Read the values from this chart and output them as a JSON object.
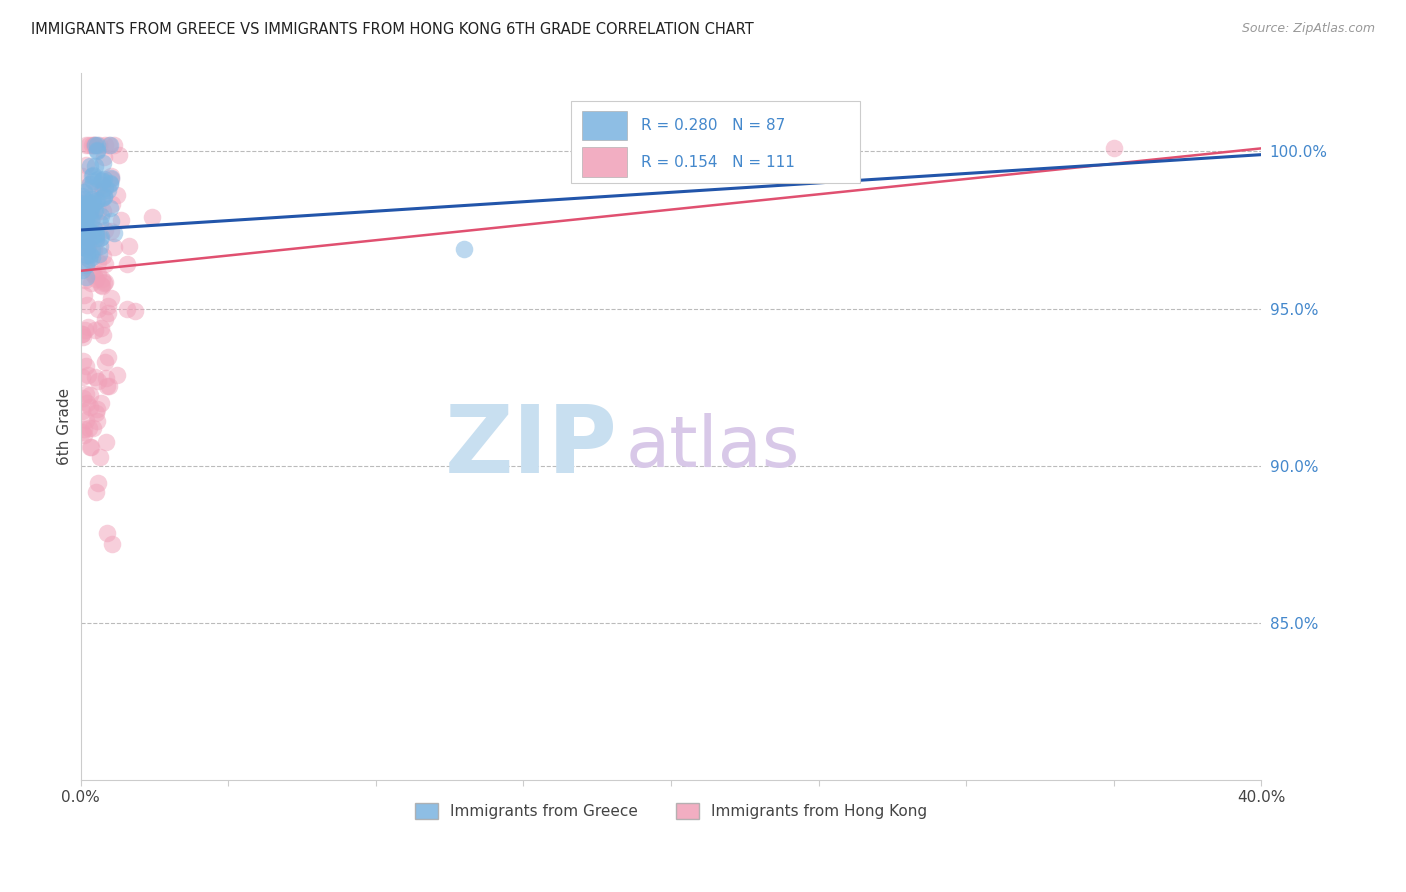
{
  "title": "IMMIGRANTS FROM GREECE VS IMMIGRANTS FROM HONG KONG 6TH GRADE CORRELATION CHART",
  "source": "Source: ZipAtlas.com",
  "ylabel": "6th Grade",
  "ytick_labels": [
    "100.0%",
    "95.0%",
    "90.0%",
    "85.0%"
  ],
  "ytick_positions": [
    1.0,
    0.95,
    0.9,
    0.85
  ],
  "xlim": [
    0.0,
    0.4
  ],
  "ylim": [
    0.8,
    1.025
  ],
  "legend1_label": "Immigrants from Greece",
  "legend2_label": "Immigrants from Hong Kong",
  "R_greece": 0.28,
  "N_greece": 87,
  "R_hk": 0.154,
  "N_hk": 111,
  "color_greece": "#7ab3e0",
  "color_hk": "#f0a0b8",
  "line_color_greece": "#2255aa",
  "line_color_hk": "#e05070",
  "watermark_zip": "ZIP",
  "watermark_atlas": "atlas",
  "watermark_color_zip": "#c8dff0",
  "watermark_color_atlas": "#d8c8e8"
}
